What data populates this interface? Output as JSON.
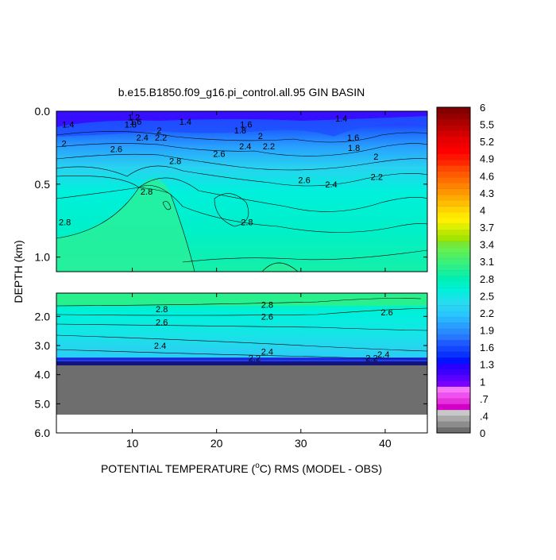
{
  "chart_data": {
    "type": "heatmap",
    "title": "b.e15.B1850.f09_g16.pi_control.all.95 GIN BASIN",
    "xlabel": "POTENTIAL TEMPERATURE (",
    "xlabel_unit_sup": "o",
    "xlabel_unit": "C) RMS (MODEL - OBS)",
    "ylabel": "DEPTH (km)",
    "xlim": [
      1,
      45
    ],
    "x_ticks": [
      {
        "value": 10,
        "label": "10"
      },
      {
        "value": 20,
        "label": "20"
      },
      {
        "value": 30,
        "label": "30"
      },
      {
        "value": 40,
        "label": "40"
      }
    ],
    "upper_panel": {
      "ylim": [
        0.0,
        1.1
      ],
      "y_ticks": [
        {
          "value": 0.0,
          "label": "0.0"
        },
        {
          "value": 0.5,
          "label": "0.5"
        },
        {
          "value": 1.0,
          "label": "1.0"
        }
      ],
      "contour_labels": [
        {
          "text": "1.4",
          "x": 2.4,
          "y": 0.09
        },
        {
          "text": "1.2",
          "x": 10.2,
          "y": 0.04
        },
        {
          "text": "1.6",
          "x": 10.4,
          "y": 0.07
        },
        {
          "text": "1.8",
          "x": 9.8,
          "y": 0.09
        },
        {
          "text": "1.4",
          "x": 16.3,
          "y": 0.07
        },
        {
          "text": "1.4",
          "x": 34.8,
          "y": 0.05
        },
        {
          "text": "1.6",
          "x": 23.5,
          "y": 0.09
        },
        {
          "text": "1.8",
          "x": 22.8,
          "y": 0.13
        },
        {
          "text": "1.6",
          "x": 36.2,
          "y": 0.18
        },
        {
          "text": "2",
          "x": 13.2,
          "y": 0.13
        },
        {
          "text": "2",
          "x": 25.2,
          "y": 0.17
        },
        {
          "text": "2",
          "x": 1.9,
          "y": 0.22
        },
        {
          "text": "2.2",
          "x": 13.4,
          "y": 0.18
        },
        {
          "text": "2.4",
          "x": 11.2,
          "y": 0.18
        },
        {
          "text": "2.6",
          "x": 8.1,
          "y": 0.26
        },
        {
          "text": "2.4",
          "x": 23.4,
          "y": 0.24
        },
        {
          "text": "2.2",
          "x": 26.2,
          "y": 0.24
        },
        {
          "text": "1.8",
          "x": 36.3,
          "y": 0.25
        },
        {
          "text": "2",
          "x": 38.9,
          "y": 0.31
        },
        {
          "text": "2.8",
          "x": 15.1,
          "y": 0.34
        },
        {
          "text": "2.6",
          "x": 20.3,
          "y": 0.29
        },
        {
          "text": "2.2",
          "x": 39.0,
          "y": 0.45
        },
        {
          "text": "2.6",
          "x": 30.4,
          "y": 0.47
        },
        {
          "text": "2.4",
          "x": 33.6,
          "y": 0.5
        },
        {
          "text": "2.8",
          "x": 11.7,
          "y": 0.55
        },
        {
          "text": "2.8",
          "x": 2.0,
          "y": 0.76
        },
        {
          "text": "2.8",
          "x": 23.6,
          "y": 0.76
        }
      ]
    },
    "lower_panel": {
      "ylim": [
        1.2,
        6.0
      ],
      "y_ticks": [
        {
          "value": 2.0,
          "label": "2.0"
        },
        {
          "value": 3.0,
          "label": "3.0"
        },
        {
          "value": 4.0,
          "label": "4.0"
        },
        {
          "value": 5.0,
          "label": "5.0"
        },
        {
          "value": 6.0,
          "label": "6.0"
        }
      ],
      "contour_labels": [
        {
          "text": "2.8",
          "x": 13.5,
          "y": 1.75
        },
        {
          "text": "2.8",
          "x": 26.0,
          "y": 1.6
        },
        {
          "text": "2.6",
          "x": 13.5,
          "y": 2.2
        },
        {
          "text": "2.6",
          "x": 26.0,
          "y": 2.0
        },
        {
          "text": "2.6",
          "x": 40.2,
          "y": 1.85
        },
        {
          "text": "2.4",
          "x": 13.3,
          "y": 3.0
        },
        {
          "text": "2.4",
          "x": 26.0,
          "y": 3.2
        },
        {
          "text": "2.4",
          "x": 39.8,
          "y": 3.3
        },
        {
          "text": "2.2",
          "x": 38.4,
          "y": 3.42
        },
        {
          "text": "2.2",
          "x": 24.5,
          "y": 3.42
        }
      ],
      "bottom_depth_approx": 5.35
    },
    "colorbar": {
      "labels": [
        "6",
        "5.5",
        "5.2",
        "4.9",
        "4.6",
        "4.3",
        "4",
        "3.7",
        "3.4",
        "3.1",
        "2.8",
        "2.5",
        "2.2",
        "1.9",
        "1.6",
        "1.3",
        "1",
        ".7",
        ".4",
        "0"
      ],
      "colors_bottom_to_top": [
        "#6e6e6e",
        "#8c8c8c",
        "#a9a9a9",
        "#c8c8c8",
        "#d200c8",
        "#e632dc",
        "#f050f0",
        "#f678f6",
        "#7800ff",
        "#5a00ff",
        "#3c00ff",
        "#2800ff",
        "#0014ff",
        "#0a32ff",
        "#1446ff",
        "#1e5aff",
        "#2878ff",
        "#288cff",
        "#28a0ff",
        "#28b4ff",
        "#28c8ff",
        "#28d2f0",
        "#28dcf0",
        "#14e6e6",
        "#00f0dc",
        "#00f0c8",
        "#00f0b4",
        "#14f0a0",
        "#28f08c",
        "#3cf078",
        "#50f064",
        "#64f050",
        "#78e632",
        "#a0e600",
        "#bee600",
        "#dcf000",
        "#fff000",
        "#ffe600",
        "#ffd200",
        "#ffbe00",
        "#ffaa00",
        "#ff9600",
        "#ff8200",
        "#ff6e00",
        "#ff5a00",
        "#ff4600",
        "#ff2800",
        "#ff1400",
        "#ff0000",
        "#f00000",
        "#e60000",
        "#d20000",
        "#be0000",
        "#aa0000",
        "#960000",
        "#820000"
      ]
    }
  }
}
